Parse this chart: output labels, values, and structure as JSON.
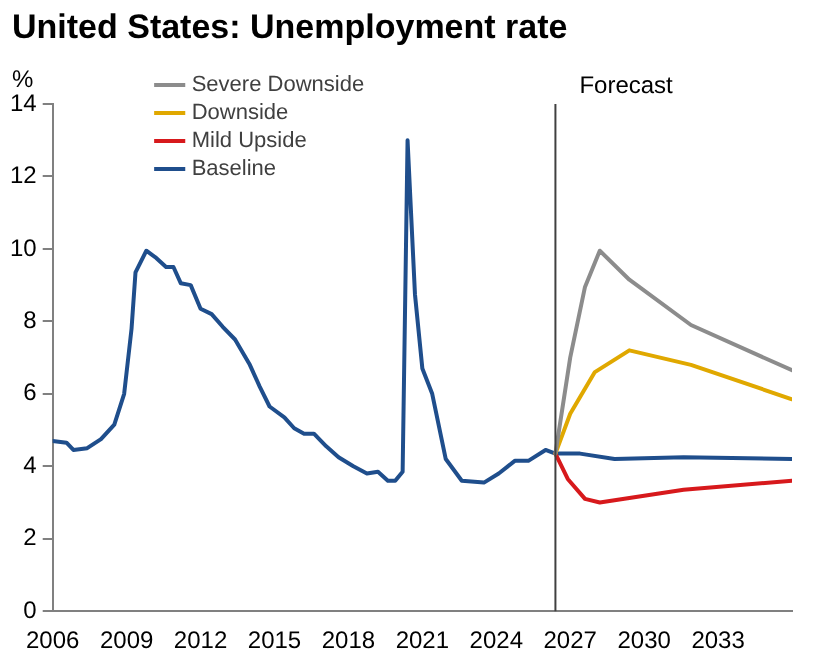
{
  "chart_data": {
    "type": "line",
    "title": "United States: Unemployment rate",
    "ylabel": "%",
    "xlim": [
      2006,
      2036
    ],
    "xticks": [
      2006,
      2009,
      2012,
      2015,
      2018,
      2021,
      2024,
      2027,
      2030,
      2033
    ],
    "ylim": [
      0,
      14
    ],
    "yticks": [
      0,
      2,
      4,
      6,
      8,
      10,
      12,
      14
    ],
    "grid": false,
    "legend": "top left",
    "marker": "none",
    "line_style": "solid",
    "ref_lines": [
      {
        "axis": "x",
        "value": 2026.4,
        "label": "Forecast",
        "color": "#404040"
      }
    ],
    "series": [
      {
        "name": "Severe Downside",
        "color": "#8c8c8c",
        "x": [
          2026.4,
          2027.0,
          2027.6,
          2028.2,
          2029.4,
          2031.9,
          2036
        ],
        "values": [
          4.35,
          7.0,
          8.95,
          9.95,
          9.15,
          7.9,
          6.65
        ]
      },
      {
        "name": "Downside",
        "color": "#e0a800",
        "x": [
          2026.4,
          2027.0,
          2028.0,
          2029.4,
          2031.9,
          2036
        ],
        "values": [
          4.35,
          5.45,
          6.6,
          7.2,
          6.8,
          5.85
        ]
      },
      {
        "name": "Mild Upside",
        "color": "#d7191c",
        "x": [
          2026.4,
          2026.9,
          2027.6,
          2028.2,
          2031.6,
          2036
        ],
        "values": [
          4.35,
          3.65,
          3.1,
          3.0,
          3.35,
          3.6
        ]
      },
      {
        "name": "Baseline",
        "color": "#1f4e8c",
        "x": [
          2006,
          2006.56,
          2006.84,
          2007.4,
          2007.96,
          2008.5,
          2008.9,
          2009.2,
          2009.36,
          2009.8,
          2010.2,
          2010.6,
          2010.9,
          2011.2,
          2011.6,
          2012.0,
          2012.45,
          2012.9,
          2013.4,
          2014.0,
          2014.4,
          2014.8,
          2015.4,
          2015.8,
          2016.2,
          2016.6,
          2017.1,
          2017.6,
          2018.2,
          2018.75,
          2019.2,
          2019.6,
          2019.9,
          2020.2,
          2020.4,
          2020.7,
          2021.0,
          2021.4,
          2021.95,
          2022.6,
          2023.5,
          2024.1,
          2024.75,
          2025.3,
          2026.0,
          2026.4,
          2027.4,
          2028.8,
          2031.6,
          2036
        ],
        "values": [
          4.7,
          4.65,
          4.45,
          4.5,
          4.75,
          5.15,
          6.0,
          7.8,
          9.35,
          9.95,
          9.75,
          9.5,
          9.5,
          9.05,
          9.0,
          8.35,
          8.2,
          7.85,
          7.5,
          6.8,
          6.2,
          5.65,
          5.35,
          5.05,
          4.9,
          4.9,
          4.55,
          4.25,
          4.0,
          3.8,
          3.85,
          3.6,
          3.6,
          3.85,
          13.0,
          8.75,
          6.7,
          6.0,
          4.2,
          3.6,
          3.55,
          3.8,
          4.15,
          4.15,
          4.45,
          4.35,
          4.35,
          4.2,
          4.25,
          4.2
        ]
      }
    ]
  }
}
